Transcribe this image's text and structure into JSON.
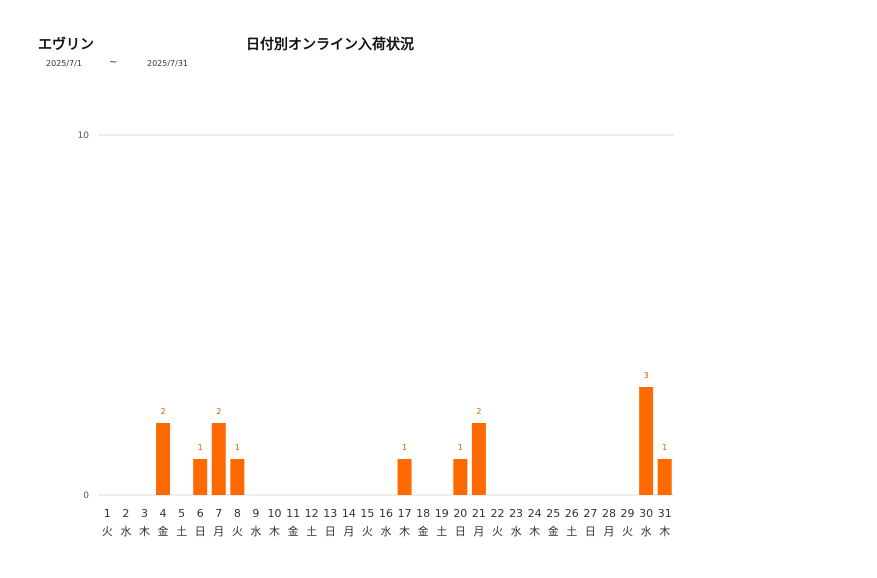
{
  "header": {
    "shop_name": "エヴリン",
    "title": "日付別オンライン入荷状況",
    "date_from": "2025/7/1",
    "date_sep": "~",
    "date_to": "2025/7/31"
  },
  "chart_data": {
    "type": "bar",
    "title": "日付別オンライン入荷状況",
    "categories": [
      "1",
      "2",
      "3",
      "4",
      "5",
      "6",
      "7",
      "8",
      "9",
      "10",
      "11",
      "12",
      "13",
      "14",
      "15",
      "16",
      "17",
      "18",
      "19",
      "20",
      "21",
      "22",
      "23",
      "24",
      "25",
      "26",
      "27",
      "28",
      "29",
      "30",
      "31"
    ],
    "weekdays": [
      "火",
      "水",
      "木",
      "金",
      "土",
      "日",
      "月",
      "火",
      "水",
      "木",
      "金",
      "土",
      "日",
      "月",
      "火",
      "水",
      "木",
      "金",
      "土",
      "日",
      "月",
      "火",
      "水",
      "木",
      "金",
      "土",
      "日",
      "月",
      "火",
      "水",
      "木"
    ],
    "values": [
      0,
      0,
      0,
      2,
      0,
      1,
      2,
      1,
      0,
      0,
      0,
      0,
      0,
      0,
      0,
      0,
      1,
      0,
      0,
      1,
      2,
      0,
      0,
      0,
      0,
      0,
      0,
      0,
      0,
      3,
      1
    ],
    "ylim": [
      0,
      10
    ],
    "yticks": [
      0,
      10
    ],
    "grid": true,
    "legend": "none",
    "bar_color": "#ff6a00",
    "label_color": "#e06000",
    "grid_color": "#dddddd"
  }
}
